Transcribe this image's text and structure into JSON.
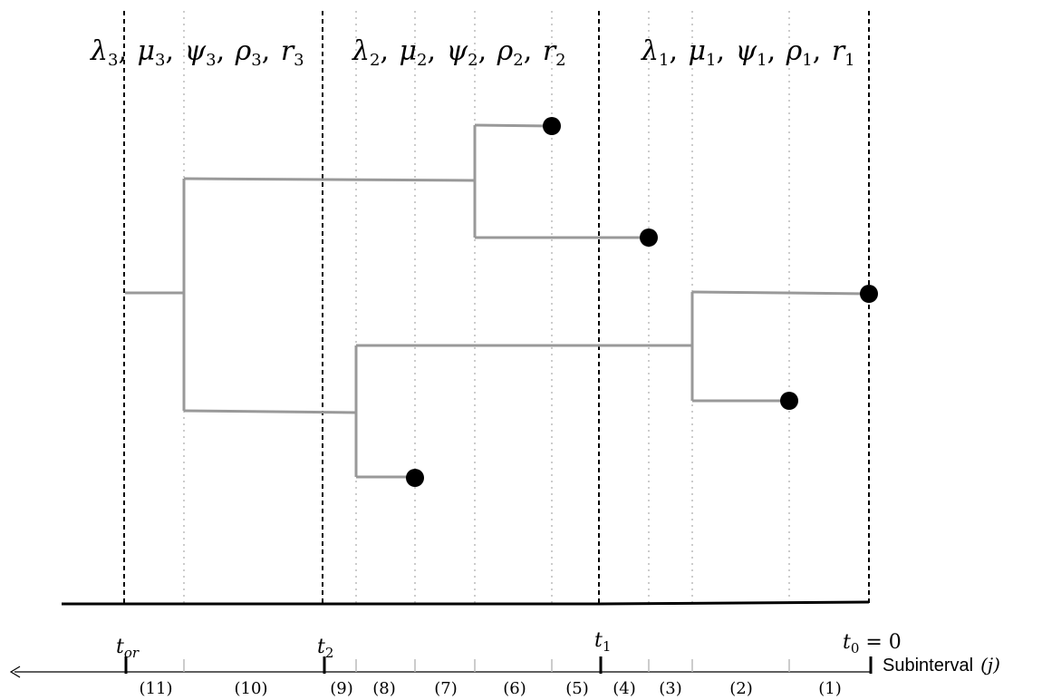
{
  "regime_labels": [
    "λ3, μ3, ψ3, ρ3, r3",
    "λ2, μ2, ψ2, ρ2, r2",
    "λ1, μ1, ψ1, ρ1, r1"
  ],
  "regime_label_parts": [
    [
      {
        "s": "λ",
        "i": "3"
      },
      {
        "s": "μ",
        "i": "3"
      },
      {
        "s": "ψ",
        "i": "3"
      },
      {
        "s": "ρ",
        "i": "3"
      },
      {
        "s": "r",
        "i": "3"
      }
    ],
    [
      {
        "s": "λ",
        "i": "2"
      },
      {
        "s": "μ",
        "i": "2"
      },
      {
        "s": "ψ",
        "i": "2"
      },
      {
        "s": "ρ",
        "i": "2"
      },
      {
        "s": "r",
        "i": "2"
      }
    ],
    [
      {
        "s": "λ",
        "i": "1"
      },
      {
        "s": "μ",
        "i": "1"
      },
      {
        "s": "ψ",
        "i": "1"
      },
      {
        "s": "ρ",
        "i": "1"
      },
      {
        "s": "r",
        "i": "1"
      }
    ]
  ],
  "time_points": {
    "t_or": {
      "base": "t",
      "sub": "or",
      "text": "t_or"
    },
    "t_2": {
      "base": "t",
      "sub": "2",
      "text": "t2"
    },
    "t_1": {
      "base": "t",
      "sub": "1",
      "text": "t1"
    },
    "t_0": {
      "base": "t",
      "sub": "0",
      "suffix": " = 0",
      "text": "t0 = 0"
    }
  },
  "axis_title": "Subinterval",
  "axis_title_var": "(j)",
  "subintervals": [
    "(11)",
    "(10)",
    "(9)",
    "(8)",
    "(7)",
    "(6)",
    "(5)",
    "(4)",
    "(3)",
    "(2)",
    "(1)"
  ],
  "colors": {
    "tree_branch": "#999999",
    "boundary": "#000000",
    "grid": "#bbbbbb",
    "tip": "#000000"
  }
}
